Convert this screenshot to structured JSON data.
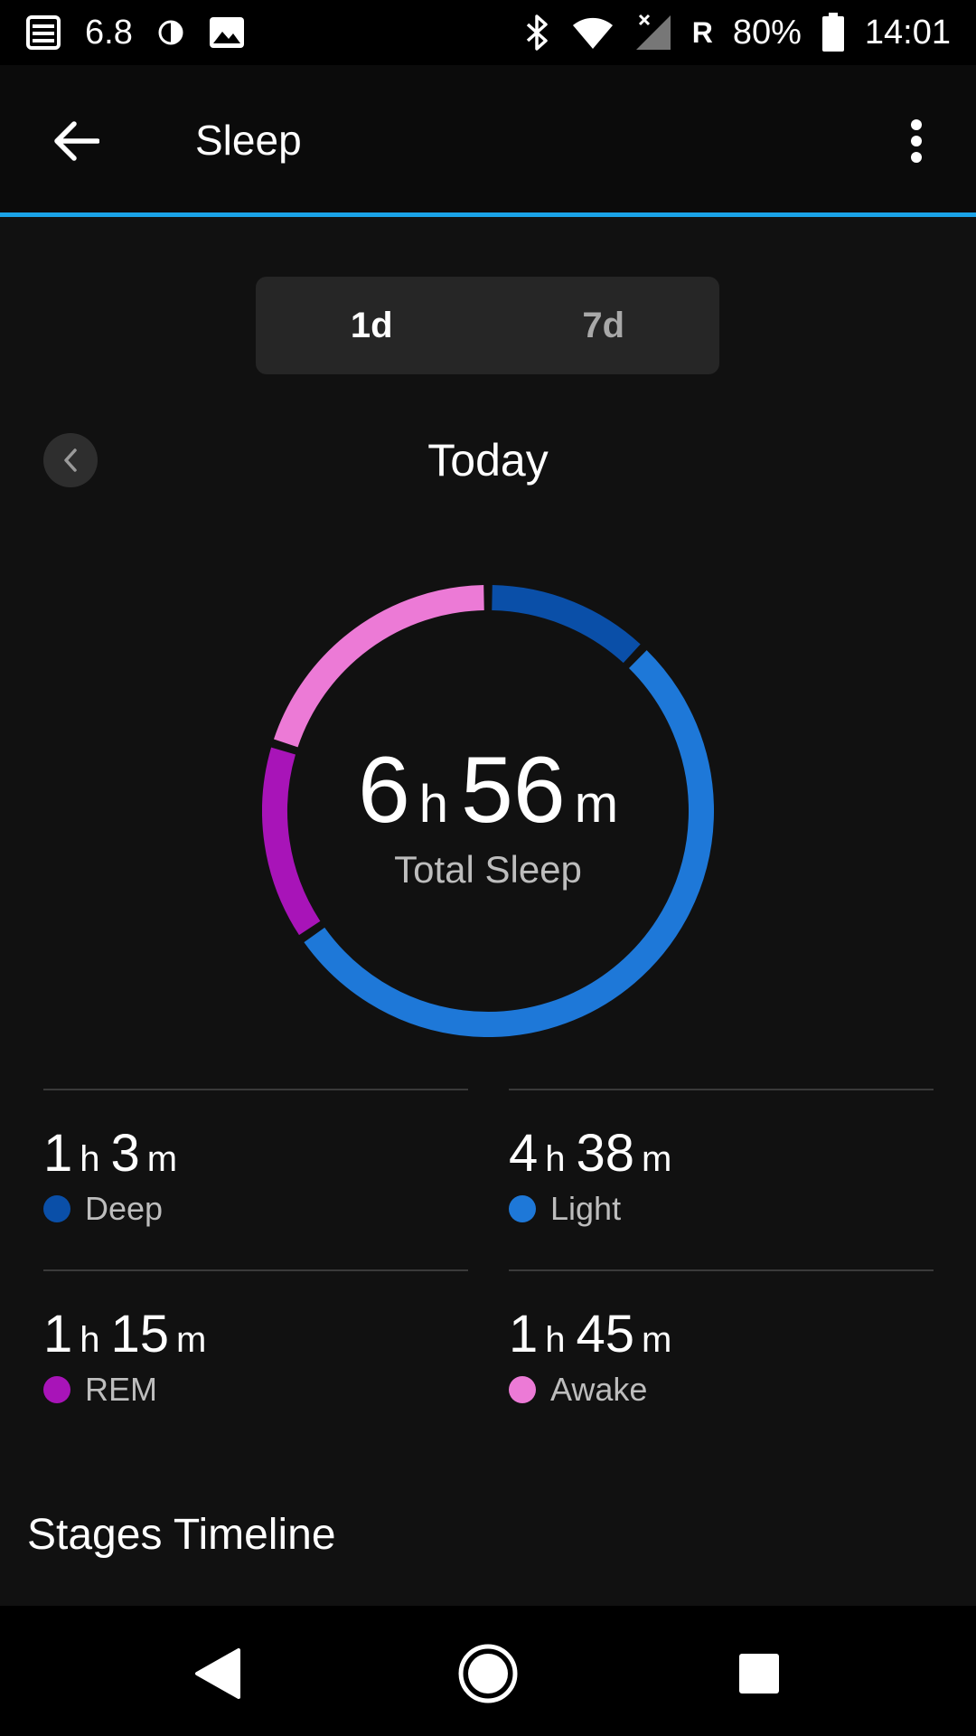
{
  "status_bar": {
    "left_text": "6.8",
    "roaming": "R",
    "battery": "80%",
    "time": "14:01"
  },
  "app_bar": {
    "title": "Sleep"
  },
  "range_toggle": {
    "options": [
      "1d",
      "7d"
    ],
    "selected": "1d"
  },
  "date_nav": {
    "label": "Today"
  },
  "total": {
    "hours": "6",
    "hours_unit": "h",
    "minutes": "56",
    "minutes_unit": "m",
    "label": "Total Sleep"
  },
  "stages": [
    {
      "name": "Deep",
      "hours": "1",
      "minutes": "3",
      "color": "#0a4fa8",
      "minutes_total": 63
    },
    {
      "name": "Light",
      "hours": "4",
      "minutes": "38",
      "color": "#1e78d8",
      "minutes_total": 278
    },
    {
      "name": "REM",
      "hours": "1",
      "minutes": "15",
      "color": "#a814b8",
      "minutes_total": 75
    },
    {
      "name": "Awake",
      "hours": "1",
      "minutes": "45",
      "color": "#ec7ad6",
      "minutes_total": 105
    }
  ],
  "units": {
    "h": "h",
    "m": "m"
  },
  "section": {
    "title": "Stages Timeline"
  }
}
